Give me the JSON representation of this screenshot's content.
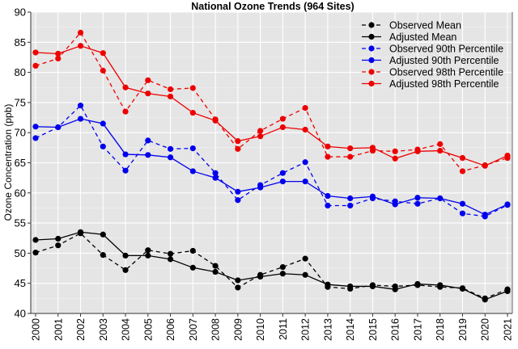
{
  "chart_data": {
    "type": "line",
    "title": "National Ozone Trends (964 Sites)",
    "xlabel": "",
    "ylabel": "Ozone Concentration (ppb)",
    "ylim": [
      40,
      90
    ],
    "yticks": [
      40,
      45,
      50,
      55,
      60,
      65,
      70,
      75,
      80,
      85,
      90
    ],
    "grid": true,
    "legend_position": "top-right",
    "x": [
      "2000",
      "2001",
      "2002",
      "2003",
      "2004",
      "2005",
      "2006",
      "2007",
      "2008",
      "2009",
      "2010",
      "2011",
      "2012",
      "2013",
      "2014",
      "2015",
      "2016",
      "2017",
      "2018",
      "2019",
      "2020",
      "2021"
    ],
    "series": [
      {
        "name": "Observed Mean",
        "color": "#000000",
        "dashed": true,
        "values": [
          50.1,
          51.3,
          53.3,
          49.7,
          47.2,
          50.5,
          49.9,
          50.4,
          47.9,
          44.3,
          46.4,
          47.7,
          49.1,
          44.4,
          44.1,
          44.7,
          44.5,
          44.7,
          44.4,
          44.2,
          42.5,
          44.0
        ]
      },
      {
        "name": "Adjusted Mean",
        "color": "#000000",
        "dashed": false,
        "values": [
          52.2,
          52.4,
          53.5,
          53.1,
          49.6,
          49.6,
          49.0,
          47.6,
          46.9,
          45.5,
          46.1,
          46.6,
          46.4,
          44.8,
          44.5,
          44.5,
          44.0,
          44.9,
          44.7,
          44.1,
          42.3,
          43.7
        ]
      },
      {
        "name": "Observed 90th Percentile",
        "color": "#0000ee",
        "dashed": true,
        "values": [
          69.1,
          70.9,
          74.5,
          67.7,
          63.7,
          68.7,
          67.3,
          67.4,
          63.3,
          58.8,
          61.3,
          63.3,
          65.1,
          57.9,
          57.9,
          59.1,
          58.6,
          58.2,
          59.1,
          56.6,
          56.1,
          58.0
        ]
      },
      {
        "name": "Adjusted 90th Percentile",
        "color": "#0000ee",
        "dashed": false,
        "values": [
          71.0,
          70.9,
          72.3,
          71.5,
          66.4,
          66.3,
          65.9,
          63.6,
          62.5,
          60.2,
          60.9,
          61.9,
          61.9,
          59.5,
          59.1,
          59.4,
          58.1,
          59.2,
          59.1,
          58.2,
          56.4,
          58.1
        ]
      },
      {
        "name": "Observed 98th Percentile",
        "color": "#ee0000",
        "dashed": true,
        "values": [
          81.1,
          82.3,
          86.6,
          80.3,
          73.5,
          78.7,
          77.2,
          77.4,
          72.2,
          67.3,
          70.3,
          72.3,
          74.1,
          66.0,
          66.0,
          67.0,
          66.9,
          67.2,
          68.1,
          63.6,
          64.6,
          65.8
        ]
      },
      {
        "name": "Adjusted 98th Percentile",
        "color": "#ee0000",
        "dashed": false,
        "values": [
          83.3,
          83.1,
          84.4,
          83.2,
          77.5,
          76.5,
          76.0,
          73.3,
          72.0,
          68.6,
          69.4,
          70.9,
          70.5,
          67.7,
          67.4,
          67.5,
          65.7,
          66.9,
          67.0,
          65.8,
          64.5,
          66.2
        ]
      }
    ]
  }
}
